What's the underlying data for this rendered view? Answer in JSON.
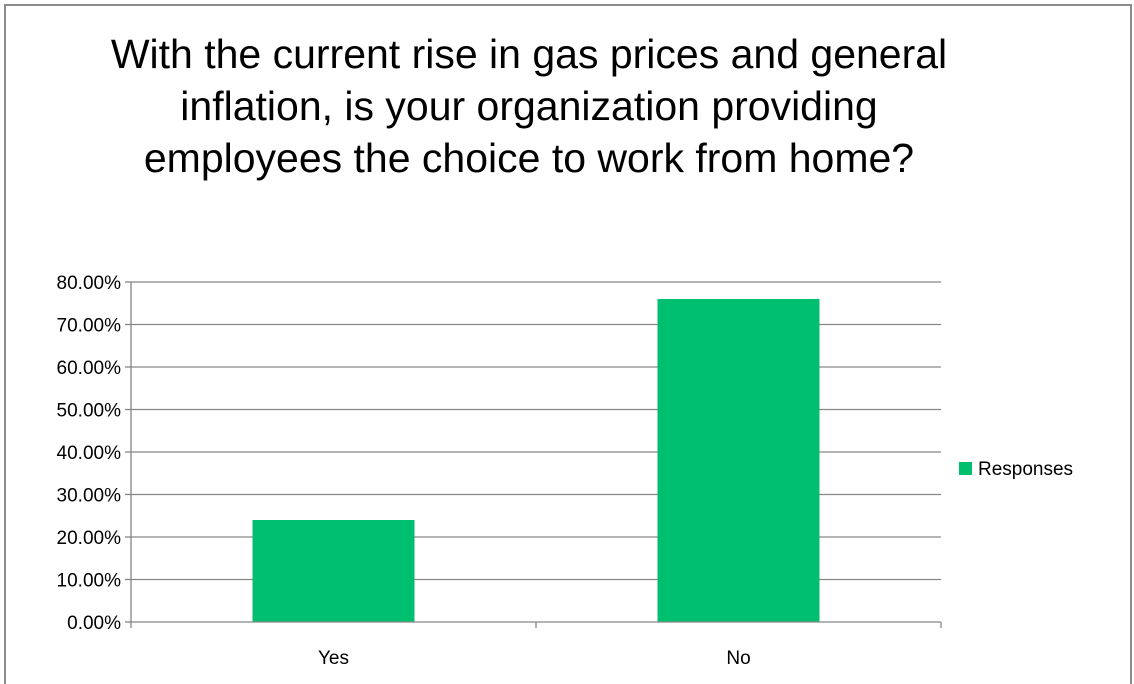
{
  "chart_data": {
    "type": "bar",
    "title": "With the current rise in gas prices and general inflation, is your organization providing employees the choice to work from home?",
    "categories": [
      "Yes",
      "No"
    ],
    "series": [
      {
        "name": "Responses",
        "values": [
          24.0,
          76.0
        ],
        "color": "#00BF6F"
      }
    ],
    "ylim": [
      0,
      80
    ],
    "yticks": [
      "0.00%",
      "10.00%",
      "20.00%",
      "30.00%",
      "40.00%",
      "50.00%",
      "60.00%",
      "70.00%",
      "80.00%"
    ],
    "grid": true,
    "legend_position": "right"
  }
}
